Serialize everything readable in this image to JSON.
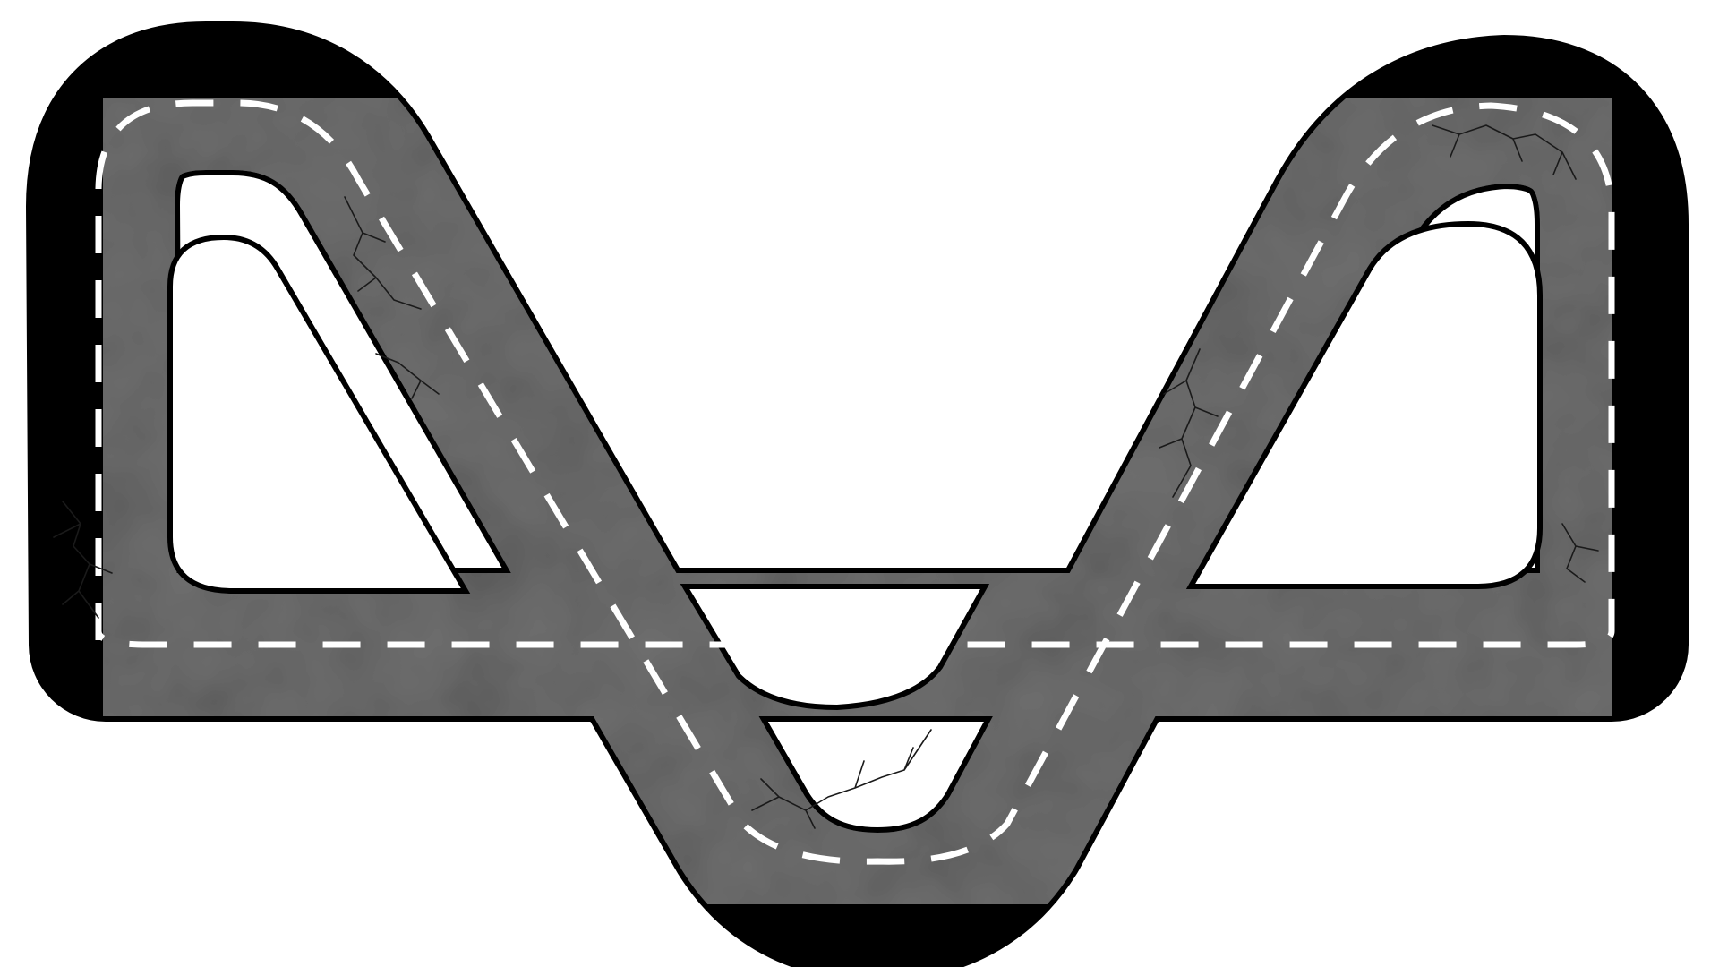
{
  "scene": {
    "type": "race-track-top-down",
    "background_color": "#ffffff",
    "track": {
      "shape": "figure-loop-with-v-dip",
      "asphalt_color": "#6e6e6e",
      "asphalt_highlight_color": "#8a8a8a",
      "asphalt_shadow_color": "#4f4f4f",
      "edge_color": "#000000",
      "center_line": {
        "style": "dashed",
        "color": "#ffffff"
      },
      "has_cracks": true,
      "crack_color": "#1a1a1a"
    }
  }
}
